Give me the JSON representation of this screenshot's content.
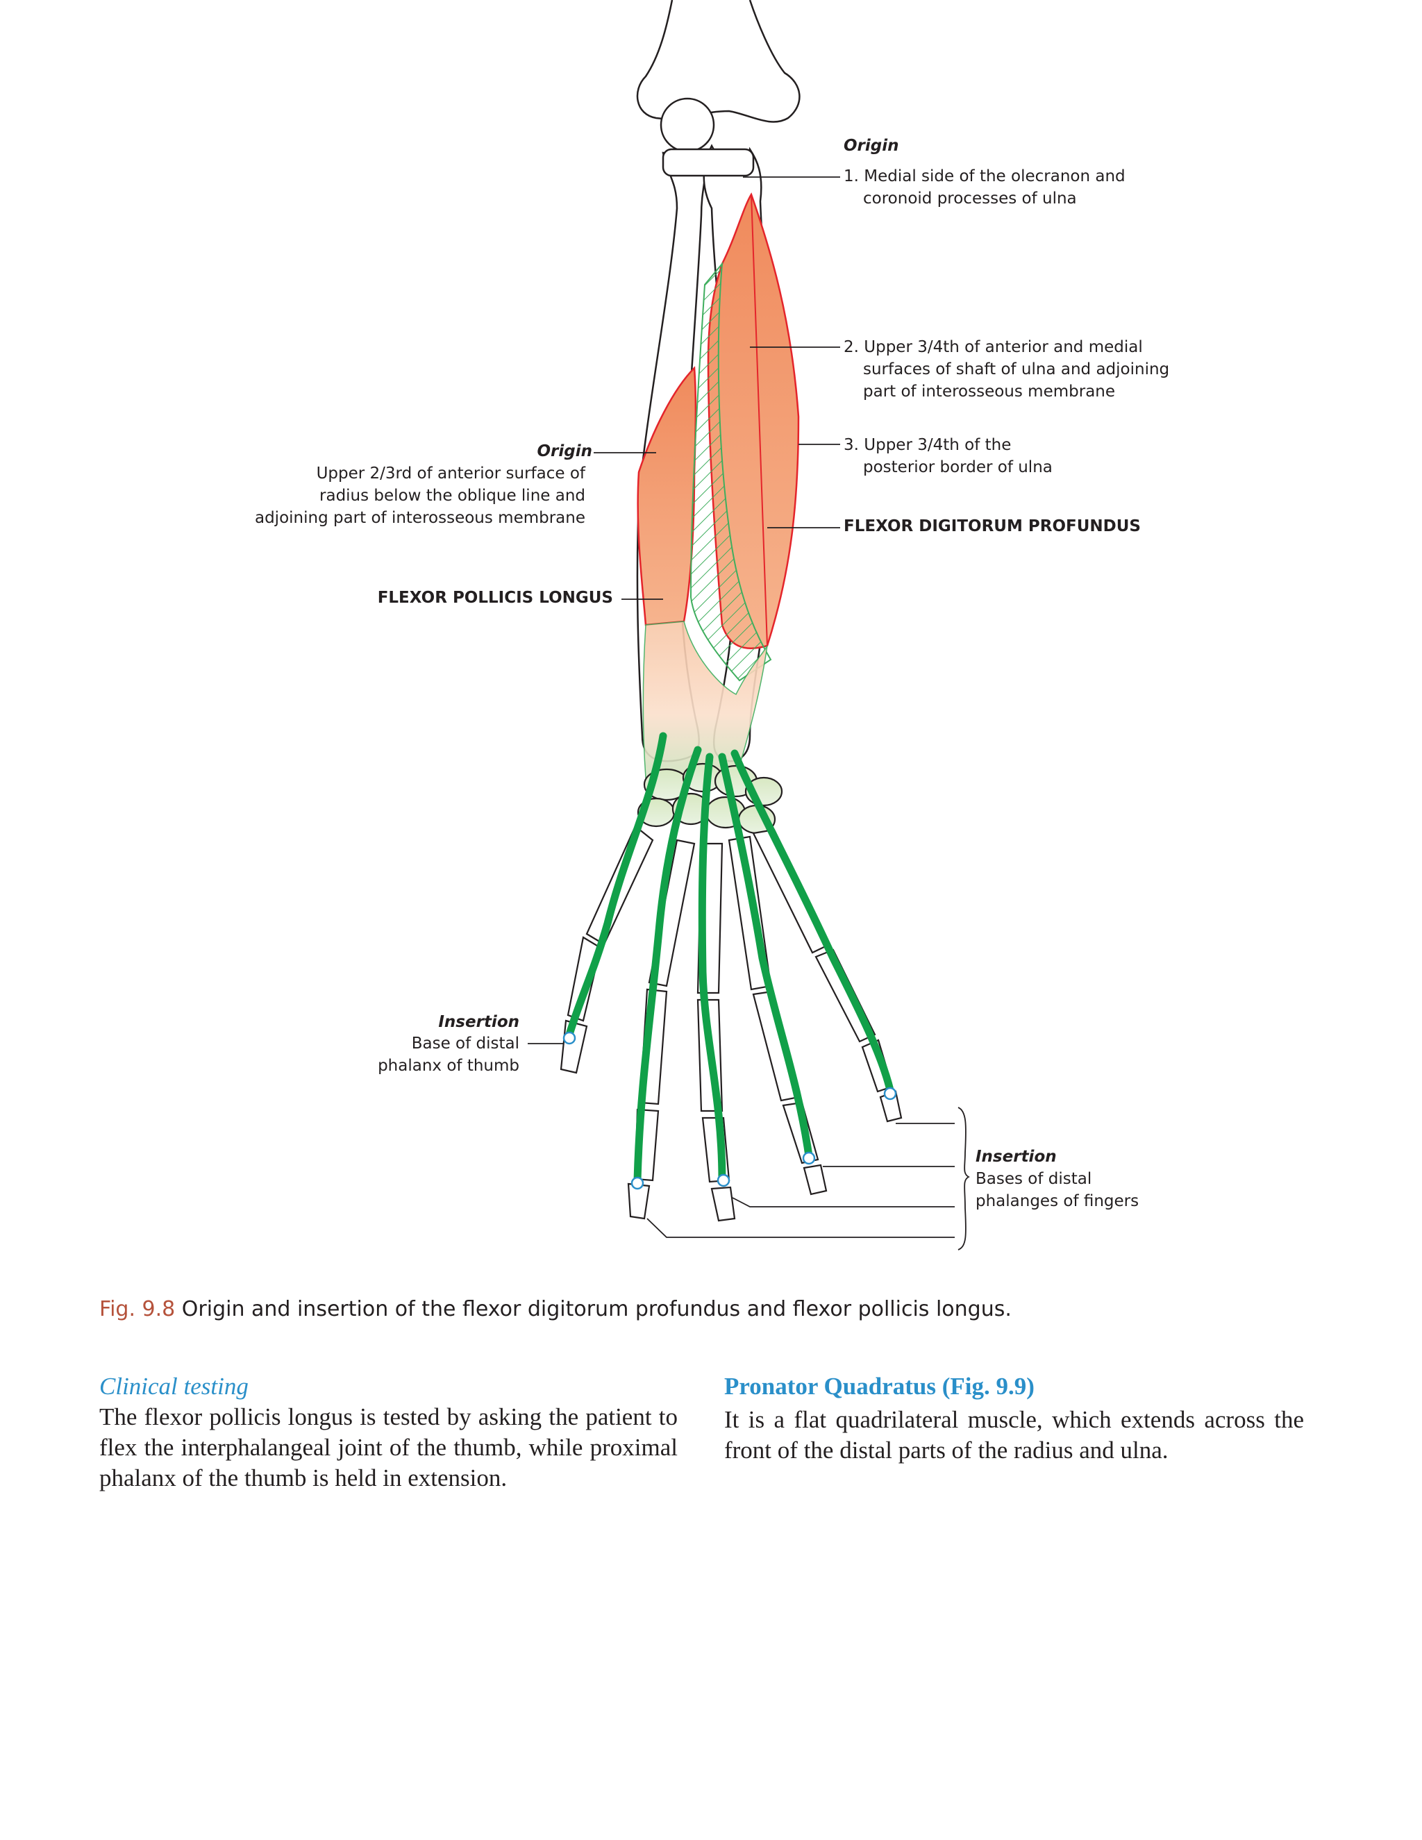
{
  "figure": {
    "labels": {
      "origin_ulna_heading": "Origin",
      "origin_ulna_1_line1": "1. Medial side of the olecranon and",
      "origin_ulna_1_line2": "coronoid processes of ulna",
      "origin_ulna_2_line1": "2. Upper 3/4th of anterior and medial",
      "origin_ulna_2_line2": "surfaces of shaft of ulna and adjoining",
      "origin_ulna_2_line3": "part of interosseous membrane",
      "origin_ulna_3_line1": "3. Upper 3/4th of the",
      "origin_ulna_3_line2": "posterior border of ulna",
      "fdp_name": "FLEXOR DIGITORUM PROFUNDUS",
      "origin_radius_heading": "Origin",
      "origin_radius_line1": "Upper 2/3rd of anterior surface of",
      "origin_radius_line2": "radius below the oblique line and",
      "origin_radius_line3": "adjoining part of interosseous membrane",
      "fpl_name": "FLEXOR POLLICIS LONGUS",
      "insertion_thumb_heading": "Insertion",
      "insertion_thumb_line1": "Base of distal",
      "insertion_thumb_line2": "phalanx of thumb",
      "insertion_fingers_heading": "Insertion",
      "insertion_fingers_line1": "Bases of distal",
      "insertion_fingers_line2": "phalanges of fingers"
    },
    "caption_number": "Fig. 9.8",
    "caption_text": "Origin and insertion of the flexor digitorum profundus and flexor pollicis longus.",
    "colors": {
      "muscle_fill": "#f4a47e",
      "muscle_outline": "#e4242b",
      "tendon": "#11a049",
      "hatch": "#3fae5e",
      "bone_outline": "#231f20",
      "caption_number": "#b5523b",
      "heading_blue": "#2a8fc9"
    }
  },
  "left_column": {
    "heading": "Clinical testing",
    "text": "The flexor pollicis longus is tested by asking the patient to flex the interphalangeal joint of the thumb, while proximal phalanx of the thumb is held in extension."
  },
  "right_column": {
    "heading": "Pronator Quadratus (Fig. 9.9)",
    "text": "It is a flat quadrilateral muscle, which extends across the front of the distal parts of the radius and ulna."
  }
}
